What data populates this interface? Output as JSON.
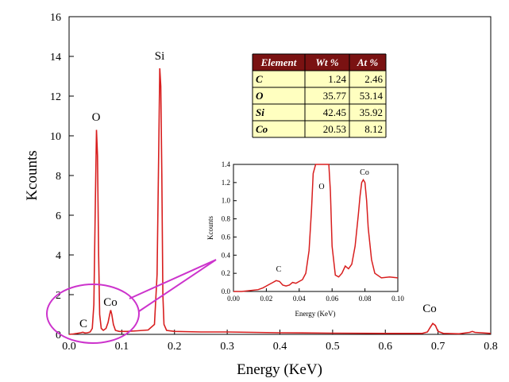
{
  "colors": {
    "spectrum": "#d81e1e",
    "highlight": "#cc33cc",
    "table_header_bg": "#7a1212",
    "table_cell_bg": "#ffffc0"
  },
  "chart_data": [
    {
      "type": "line",
      "xlabel": "Energy (KeV)",
      "ylabel": "Kcounts",
      "xlim": [
        0.0,
        0.8
      ],
      "ylim": [
        0,
        16
      ],
      "xticks": [
        "0.0",
        "0.1",
        "0.2",
        "0.3",
        "0.4",
        "0.5",
        "0.6",
        "0.7",
        "0.8"
      ],
      "yticks": [
        "0",
        "2",
        "4",
        "6",
        "8",
        "10",
        "12",
        "14",
        "16"
      ],
      "grid": false,
      "series": [
        {
          "x": [
            0.0,
            0.008,
            0.015,
            0.022,
            0.026,
            0.03,
            0.035,
            0.04,
            0.044,
            0.047,
            0.05,
            0.052,
            0.054,
            0.056,
            0.058,
            0.061,
            0.065,
            0.07,
            0.074,
            0.077,
            0.079,
            0.081,
            0.084,
            0.088,
            0.095,
            0.11,
            0.13,
            0.15,
            0.162,
            0.167,
            0.17,
            0.172,
            0.174,
            0.176,
            0.178,
            0.18,
            0.185,
            0.2,
            0.25,
            0.3,
            0.4,
            0.5,
            0.6,
            0.67,
            0.68,
            0.685,
            0.69,
            0.695,
            0.7,
            0.71,
            0.74,
            0.76,
            0.765,
            0.77,
            0.8
          ],
          "y": [
            0.0,
            0.02,
            0.05,
            0.08,
            0.11,
            0.07,
            0.08,
            0.12,
            0.3,
            1.5,
            7.0,
            10.3,
            9.0,
            4.0,
            1.0,
            0.3,
            0.2,
            0.3,
            0.6,
            1.0,
            1.22,
            1.0,
            0.5,
            0.2,
            0.15,
            0.15,
            0.18,
            0.22,
            0.5,
            3.0,
            9.0,
            13.4,
            12.5,
            8.0,
            2.0,
            0.5,
            0.2,
            0.15,
            0.12,
            0.12,
            0.08,
            0.06,
            0.05,
            0.05,
            0.12,
            0.35,
            0.55,
            0.45,
            0.15,
            0.05,
            0.03,
            0.1,
            0.15,
            0.1,
            0.05
          ]
        }
      ],
      "annotations": [
        "C",
        "O",
        "Co",
        "Si",
        "Co"
      ],
      "table": {
        "headers": [
          "Element",
          "Wt %",
          "At %"
        ],
        "rows": [
          [
            "C",
            "1.24",
            "2.46"
          ],
          [
            "O",
            "35.77",
            "53.14"
          ],
          [
            "Si",
            "42.45",
            "35.92"
          ],
          [
            "Co",
            "20.53",
            "8.12"
          ]
        ]
      }
    },
    {
      "type": "line",
      "xlabel": "Energy (KeV)",
      "ylabel": "Kcounts",
      "xlim": [
        0.0,
        0.1
      ],
      "ylim": [
        0.0,
        1.4
      ],
      "xticks": [
        "0.00",
        "0.02",
        "0.04",
        "0.06",
        "0.08",
        "0.10"
      ],
      "yticks": [
        "0.0",
        "0.2",
        "0.4",
        "0.6",
        "0.8",
        "1.0",
        "1.2",
        "1.4"
      ],
      "grid": false,
      "series": [
        {
          "x": [
            0.0,
            0.005,
            0.01,
            0.015,
            0.018,
            0.02,
            0.022,
            0.024,
            0.026,
            0.028,
            0.03,
            0.032,
            0.034,
            0.036,
            0.038,
            0.04,
            0.042,
            0.044,
            0.046,
            0.0475,
            0.0485,
            0.05,
            0.052,
            0.054,
            0.056,
            0.058,
            0.059,
            0.06,
            0.062,
            0.064,
            0.066,
            0.068,
            0.07,
            0.072,
            0.074,
            0.076,
            0.077,
            0.078,
            0.079,
            0.08,
            0.081,
            0.082,
            0.084,
            0.086,
            0.09,
            0.095,
            0.1
          ],
          "y": [
            0.0,
            0.0,
            0.01,
            0.02,
            0.04,
            0.06,
            0.08,
            0.1,
            0.12,
            0.11,
            0.07,
            0.06,
            0.07,
            0.1,
            0.09,
            0.11,
            0.13,
            0.2,
            0.45,
            0.9,
            1.3,
            1.4,
            1.4,
            1.4,
            1.4,
            1.4,
            1.1,
            0.5,
            0.18,
            0.16,
            0.2,
            0.28,
            0.25,
            0.3,
            0.5,
            0.85,
            1.05,
            1.2,
            1.23,
            1.2,
            1.0,
            0.7,
            0.35,
            0.2,
            0.15,
            0.16,
            0.15
          ]
        }
      ],
      "annotations": [
        "C",
        "O",
        "Co"
      ]
    }
  ]
}
